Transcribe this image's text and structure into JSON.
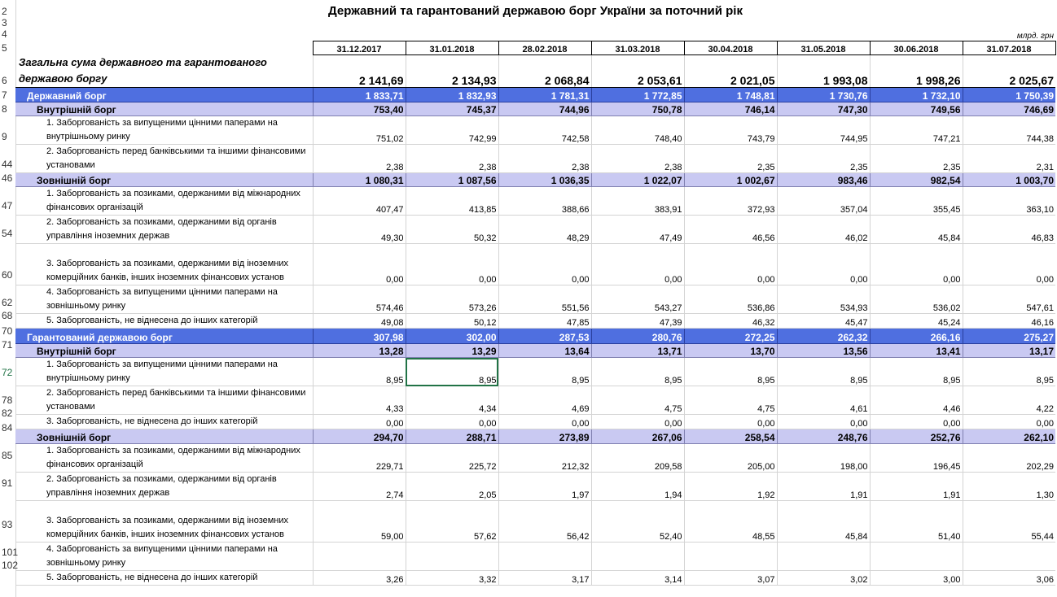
{
  "title": "Державний та гарантований державою борг України за поточний рік",
  "units": "млрд. грн",
  "dates": [
    "31.12.2017",
    "31.01.2018",
    "28.02.2018",
    "31.03.2018",
    "30.04.2018",
    "31.05.2018",
    "30.06.2018",
    "31.07.2018"
  ],
  "rownums": [
    "2",
    "3",
    "4",
    "5",
    "6",
    "7",
    "8",
    "9",
    "44",
    "46",
    "47",
    "54",
    "60",
    "62",
    "68",
    "70",
    "71",
    "72",
    "78",
    "82",
    "84",
    "85",
    "91",
    "93",
    "101",
    "102"
  ],
  "rows": [
    {
      "label": "Загальна сума державного та гарантованого державою боргу",
      "style": "total",
      "values": [
        "2 141,69",
        "2 134,93",
        "2 068,84",
        "2 053,61",
        "2 021,05",
        "1 993,08",
        "1 998,26",
        "2 025,67"
      ]
    },
    {
      "label": "Державний борг",
      "style": "blue",
      "values": [
        "1 833,71",
        "1 832,93",
        "1 781,31",
        "1 772,85",
        "1 748,81",
        "1 730,76",
        "1 732,10",
        "1 750,39"
      ]
    },
    {
      "label": "Внутрішній борг",
      "style": "lav",
      "values": [
        "753,40",
        "745,37",
        "744,96",
        "750,78",
        "746,14",
        "747,30",
        "749,56",
        "746,69"
      ]
    },
    {
      "label": "1. Заборгованість за випущеними цінними паперами на внутрішньому ринку",
      "style": "sub",
      "values": [
        "751,02",
        "742,99",
        "742,58",
        "748,40",
        "743,79",
        "744,95",
        "747,21",
        "744,38"
      ]
    },
    {
      "label": "2. Заборгованість перед банківськими та іншими фінансовими установами",
      "style": "sub",
      "values": [
        "2,38",
        "2,38",
        "2,38",
        "2,38",
        "2,35",
        "2,35",
        "2,35",
        "2,31"
      ]
    },
    {
      "label": "Зовнішній борг",
      "style": "lav",
      "values": [
        "1 080,31",
        "1 087,56",
        "1 036,35",
        "1 022,07",
        "1 002,67",
        "983,46",
        "982,54",
        "1 003,70"
      ]
    },
    {
      "label": "1. Заборгованість за позиками, одержаними від міжнародних фінансових організацій",
      "style": "sub",
      "values": [
        "407,47",
        "413,85",
        "388,66",
        "383,91",
        "372,93",
        "357,04",
        "355,45",
        "363,10"
      ]
    },
    {
      "label": "2. Заборгованість за позиками, одержаними від органів управління іноземних держав",
      "style": "sub",
      "values": [
        "49,30",
        "50,32",
        "48,29",
        "47,49",
        "46,56",
        "46,02",
        "45,84",
        "46,83"
      ]
    },
    {
      "label": "3. Заборгованість за позиками, одержаними від іноземних комерційних банків, інших іноземних фінансових установ",
      "style": "sub",
      "values": [
        "0,00",
        "0,00",
        "0,00",
        "0,00",
        "0,00",
        "0,00",
        "0,00",
        "0,00"
      ]
    },
    {
      "label": "4. Заборгованість за випущеними цінними паперами на зовнішньому ринку",
      "style": "sub",
      "values": [
        "574,46",
        "573,26",
        "551,56",
        "543,27",
        "536,86",
        "534,93",
        "536,02",
        "547,61"
      ]
    },
    {
      "label": "5. Заборгованість, не віднесена до інших категорій",
      "style": "sub",
      "values": [
        "49,08",
        "50,12",
        "47,85",
        "47,39",
        "46,32",
        "45,47",
        "45,24",
        "46,16"
      ]
    },
    {
      "label": "Гарантований державою борг",
      "style": "blue",
      "values": [
        "307,98",
        "302,00",
        "287,53",
        "280,76",
        "272,25",
        "262,32",
        "266,16",
        "275,27"
      ]
    },
    {
      "label": "Внутрішній борг",
      "style": "lav",
      "values": [
        "13,28",
        "13,29",
        "13,64",
        "13,71",
        "13,70",
        "13,56",
        "13,41",
        "13,17"
      ]
    },
    {
      "label": "1. Заборгованість за випущеними цінними паперами на внутрішньому ринку",
      "style": "sub",
      "values": [
        "8,95",
        "8,95",
        "8,95",
        "8,95",
        "8,95",
        "8,95",
        "8,95",
        "8,95"
      ]
    },
    {
      "label": "2. Заборгованість перед банківськими та іншими фінансовими установами",
      "style": "sub",
      "values": [
        "4,33",
        "4,34",
        "4,69",
        "4,75",
        "4,75",
        "4,61",
        "4,46",
        "4,22"
      ]
    },
    {
      "label": "3. Заборгованість, не віднесена до інших категорій",
      "style": "sub",
      "values": [
        "0,00",
        "0,00",
        "0,00",
        "0,00",
        "0,00",
        "0,00",
        "0,00",
        "0,00"
      ]
    },
    {
      "label": "Зовнішній борг",
      "style": "lav",
      "values": [
        "294,70",
        "288,71",
        "273,89",
        "267,06",
        "258,54",
        "248,76",
        "252,76",
        "262,10"
      ]
    },
    {
      "label": "1. Заборгованість за позиками, одержаними від міжнародних фінансових організацій",
      "style": "sub",
      "values": [
        "229,71",
        "225,72",
        "212,32",
        "209,58",
        "205,00",
        "198,00",
        "196,45",
        "202,29"
      ]
    },
    {
      "label": "2. Заборгованість за позиками, одержаними від органів управління іноземних держав",
      "style": "sub",
      "values": [
        "2,74",
        "2,05",
        "1,97",
        "1,94",
        "1,92",
        "1,91",
        "1,91",
        "1,30"
      ]
    },
    {
      "label": "3. Заборгованість за позиками, одержаними від іноземних комерційних банків, інших іноземних фінансових установ",
      "style": "sub",
      "values": [
        "59,00",
        "57,62",
        "56,42",
        "52,40",
        "48,55",
        "45,84",
        "51,40",
        "55,44"
      ]
    },
    {
      "label": "4. Заборгованість за випущеними цінними паперами на зовнішньому ринку",
      "style": "sub",
      "values": [
        "",
        "",
        "",
        "",
        "",
        "",
        "",
        ""
      ]
    },
    {
      "label": "5. Заборгованість, не віднесена до інших категорій",
      "style": "sub",
      "values": [
        "3,26",
        "3,32",
        "3,17",
        "3,14",
        "3,07",
        "3,02",
        "3,00",
        "3,06"
      ]
    }
  ]
}
